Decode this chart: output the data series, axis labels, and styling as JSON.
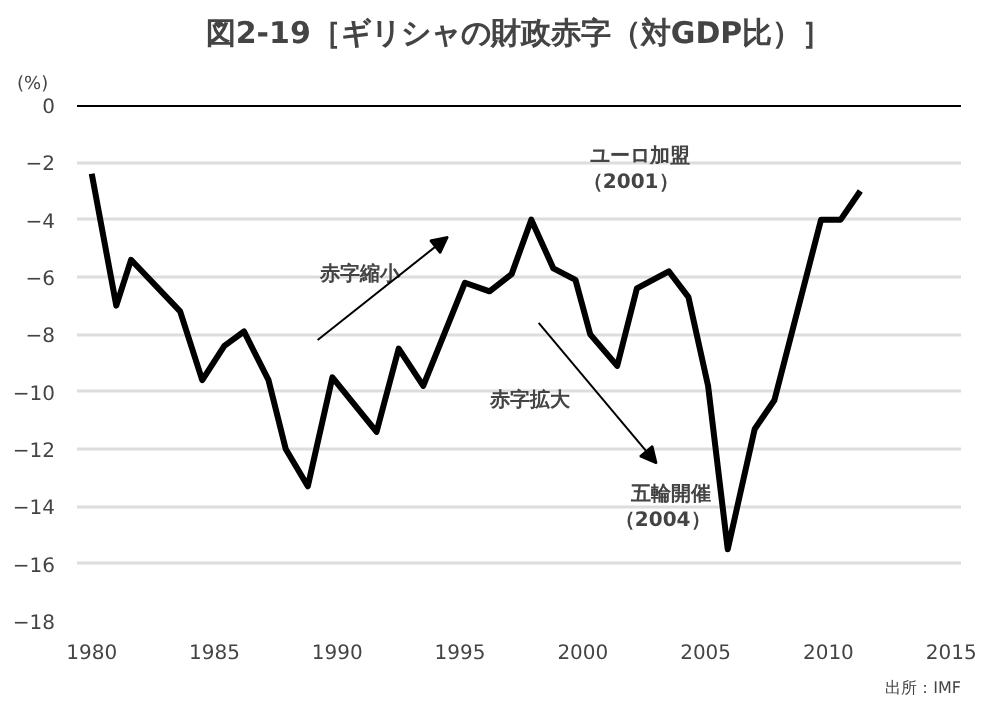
{
  "chart_data": {
    "type": "line",
    "title": "図2-19［ギリシャの財政赤字（対GDP比）］",
    "ylabel": "(%)",
    "x": [
      1980.0,
      1981.0,
      1981.6,
      1983.6,
      1984.5,
      1985.4,
      1986.2,
      1987.2,
      1987.9,
      1988.8,
      1989.8,
      1991.6,
      1992.5,
      1993.5,
      1995.2,
      1996.2,
      1997.1,
      1997.9,
      1998.8,
      1999.7,
      2000.3,
      2001.4,
      2002.2,
      2003.5,
      2004.3,
      2005.1,
      2005.9,
      2007.0,
      2007.8,
      2009.7,
      2010.5,
      2011.3
    ],
    "series": [
      {
        "color": "#000000",
        "values": [
          -2.4,
          -7.0,
          -5.4,
          -7.2,
          -9.6,
          -8.4,
          -7.9,
          -9.6,
          -12.0,
          -13.3,
          -9.5,
          -11.4,
          -8.5,
          -9.8,
          -6.2,
          -6.5,
          -5.9,
          -4.0,
          -5.7,
          -6.1,
          -8.0,
          -9.1,
          -6.4,
          -5.8,
          -6.7,
          -9.8,
          -15.5,
          -11.3,
          -10.3,
          -4.0,
          -4.0,
          -3.0
        ]
      }
    ],
    "xlim": [
      1979.4,
      2015.4
    ],
    "xticks": [
      1980,
      1985,
      1990,
      1995,
      2000,
      2005,
      2010,
      2015
    ],
    "ylim": [
      -18,
      0
    ],
    "yticks": [
      0,
      -2,
      -4,
      -6,
      -8,
      -10,
      -12,
      -14,
      -16,
      -18
    ],
    "grid": "y",
    "marker": "none",
    "line_style": "solid",
    "ref_lines": [
      {
        "axis": "y",
        "value": 0,
        "color": "#000000"
      }
    ],
    "annotations": [
      "赤字縮小",
      "ユーロ加盟",
      "（2001）",
      "赤字拡大",
      "五輪開催",
      "（2004）",
      "出所：IMF"
    ]
  }
}
